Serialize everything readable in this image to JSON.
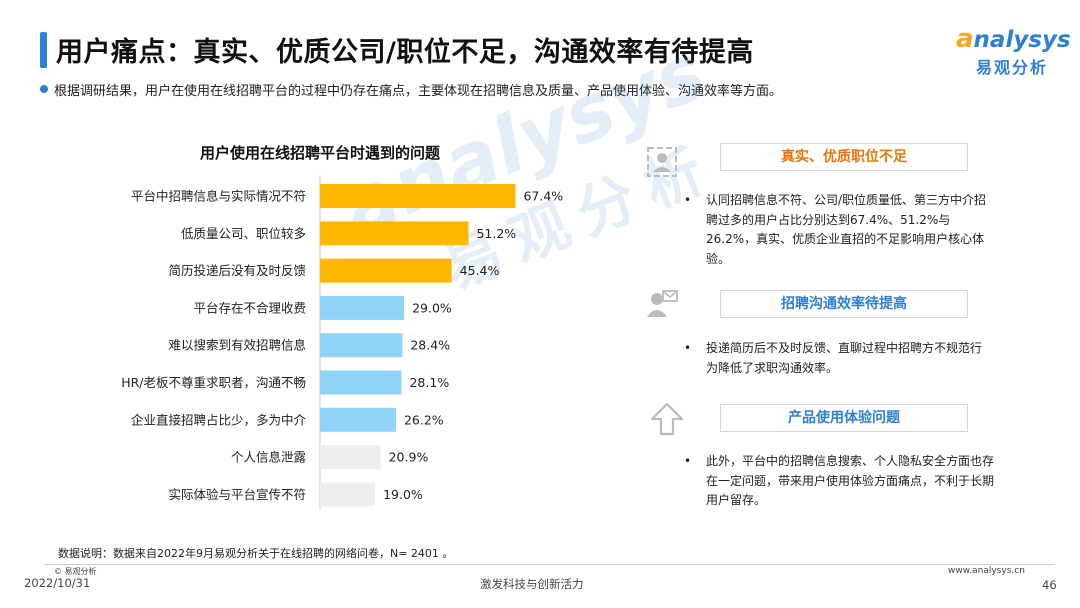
{
  "header": {
    "title": "用户痛点：真实、优质公司/职位不足，沟通效率有待提高",
    "logo_en_lead": "a",
    "logo_en_rest": "nalysys",
    "logo_cn": "易观分析",
    "intro": "根据调研结果，用户在使用在线招聘平台的过程中仍存在痛点，主要体现在招聘信息及质量、产品使用体验、沟通效率等方面。"
  },
  "watermark": {
    "en": "analysys",
    "cn": "易观分析"
  },
  "chart_title": "用户使用在线招聘平台时遇到的问题",
  "chart_data": {
    "type": "bar",
    "orientation": "horizontal",
    "title": "用户使用在线招聘平台时遇到的问题",
    "categories": [
      "平台中招聘信息与实际情况不符",
      "低质量公司、职位较多",
      "简历投递后没有及时反馈",
      "平台存在不合理收费",
      "难以搜索到有效招聘信息",
      "HR/老板不尊重求职者，沟通不畅",
      "企业直接招聘占比少，多为中介",
      "个人信息泄露",
      "实际体验与平台宣传不符"
    ],
    "values": [
      67.4,
      51.2,
      45.4,
      29.0,
      28.4,
      28.1,
      26.2,
      20.9,
      19.0
    ],
    "value_labels": [
      "67.4%",
      "51.2%",
      "45.4%",
      "29.0%",
      "28.4%",
      "28.1%",
      "26.2%",
      "20.9%",
      "19.0%"
    ],
    "bar_colors": [
      "#ffb800",
      "#ffb800",
      "#ffb800",
      "#8fd4f7",
      "#8fd4f7",
      "#8fd4f7",
      "#8fd4f7",
      "#eeeeee",
      "#eeeeee"
    ],
    "xlim": [
      0,
      100
    ],
    "grid": false,
    "legend": "none"
  },
  "panel": {
    "sections": [
      {
        "title": "真实、优质职位不足",
        "title_color": "#e8740c",
        "icon": "id-card-icon",
        "bullet": "认同招聘信息不符、公司/职位质量低、第三方中介招聘过多的用户占比分别达到67.4%、51.2%与26.2%，真实、优质企业直招的不足影响用户核心体验。",
        "dot": "•"
      },
      {
        "title": "招聘沟通效率待提高",
        "title_color": "#2f7fd6",
        "icon": "person-message-icon",
        "bullet": "投递简历后不及时反馈、直聊过程中招聘方不规范行为降低了求职沟通效率。",
        "dot": "•"
      },
      {
        "title": "产品使用体验问题",
        "title_color": "#2f7fd6",
        "icon": "arrow-up-icon",
        "bullet": "此外，平台中的招聘信息搜索、个人隐私安全方面也存在一定问题，带来用户使用体验方面痛点，不利于长期用户留存。",
        "dot": "•"
      }
    ]
  },
  "footer": {
    "note": "数据说明：数据来自2022年9月易观分析关于在线招聘的网络问卷，N=  2401 。",
    "copyright": "© 易观分析",
    "date": "2022/10/31",
    "slogan": "激发科技与创新活力",
    "website": "www.analysys.cn",
    "page": "46"
  },
  "colors": {
    "accent": "#2f7fd6",
    "orange": "#ffb800",
    "light_blue": "#8fd4f7",
    "gray": "#eeeeee"
  }
}
